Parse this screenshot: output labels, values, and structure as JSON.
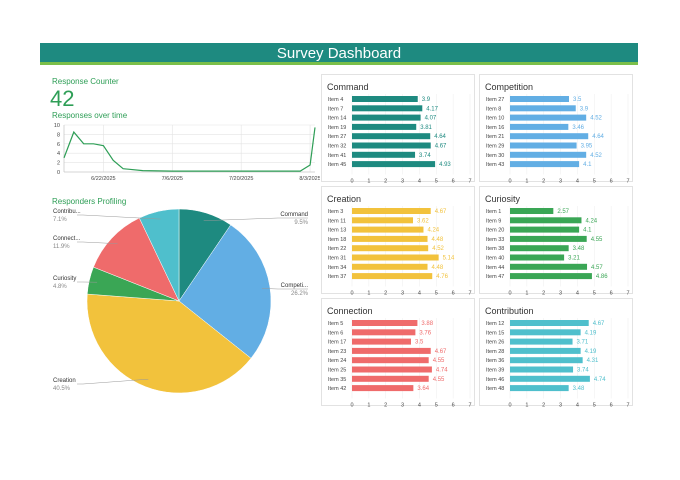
{
  "header": {
    "title": "Survey Dashboard"
  },
  "counter": {
    "label": "Response Counter",
    "value": "42"
  },
  "timeline": {
    "title": "Responses over time",
    "y_ticks": [
      0,
      2,
      4,
      6,
      8,
      10
    ],
    "x_ticks": [
      "6/22/2025",
      "7/6/2025",
      "7/20/2025",
      "8/3/2025"
    ]
  },
  "profiling": {
    "title": "Responders Profiling"
  },
  "chart_data": [
    {
      "type": "line",
      "title": "Responses over time",
      "x": [
        "6/14/2025",
        "6/16/2025",
        "6/18/2025",
        "6/20/2025",
        "6/22/2025",
        "6/24/2025",
        "6/26/2025",
        "6/30/2025",
        "7/6/2025",
        "7/13/2025",
        "7/20/2025",
        "7/27/2025",
        "8/1/2025",
        "8/3/2025",
        "8/4/2025"
      ],
      "values": [
        3,
        8.5,
        6,
        6,
        5.6,
        2.5,
        0.7,
        0.3,
        0.2,
        0.2,
        0.2,
        0.2,
        0.2,
        1.5,
        9.5
      ],
      "ylim": [
        0,
        10
      ],
      "color": "#2e9e56"
    },
    {
      "type": "pie",
      "title": "Responders Profiling",
      "slices": [
        {
          "name": "Command",
          "percent": "9.5%",
          "value": 9.5,
          "color": "#1e8a80"
        },
        {
          "name": "Competi...",
          "percent": "26.2%",
          "value": 26.2,
          "color": "#62aee4"
        },
        {
          "name": "Creation",
          "percent": "40.5%",
          "value": 40.5,
          "color": "#f2c23c"
        },
        {
          "name": "Curiosity",
          "percent": "4.8%",
          "value": 4.8,
          "color": "#3aa655"
        },
        {
          "name": "Connect...",
          "percent": "11.9%",
          "value": 11.9,
          "color": "#ef6b6b"
        },
        {
          "name": "Contribu...",
          "percent": "7.1%",
          "value": 7.1,
          "color": "#4fbfcc"
        }
      ]
    },
    {
      "type": "bar",
      "title": "Command",
      "color": "#1e8a80",
      "xlim": [
        0,
        7
      ],
      "categories": [
        "Item 4",
        "Item 7",
        "Item 14",
        "Item 19",
        "Item 27",
        "Item 32",
        "Item 41",
        "Item 45"
      ],
      "values": [
        3.9,
        4.17,
        4.07,
        3.81,
        4.64,
        4.67,
        3.74,
        4.93
      ],
      "labels": [
        "3.9",
        "4.17",
        "4.07",
        "3.81",
        "4.64",
        "4.67",
        "3.74",
        "4.93"
      ]
    },
    {
      "type": "bar",
      "title": "Competition",
      "color": "#62aee4",
      "xlim": [
        0,
        7
      ],
      "categories": [
        "Item 27",
        "Item 8",
        "Item 10",
        "Item 16",
        "Item 21",
        "Item 29",
        "Item 30",
        "Item 43"
      ],
      "values": [
        3.5,
        3.9,
        4.52,
        3.46,
        4.64,
        3.95,
        4.52,
        4.1
      ],
      "labels": [
        "3.5",
        "3.9",
        "4.52",
        "3.46",
        "4.64",
        "3.95",
        "4.52",
        "4.1"
      ]
    },
    {
      "type": "bar",
      "title": "Creation",
      "color": "#f2c23c",
      "xlim": [
        0,
        7
      ],
      "categories": [
        "Item 3",
        "Item 11",
        "Item 13",
        "Item 18",
        "Item 22",
        "Item 31",
        "Item 34",
        "Item 37"
      ],
      "values": [
        4.67,
        3.62,
        4.24,
        4.48,
        4.52,
        5.14,
        4.48,
        4.76
      ],
      "labels": [
        "4.67",
        "3.62",
        "4.24",
        "4.48",
        "4.52",
        "5.14",
        "4.48",
        "4.76"
      ]
    },
    {
      "type": "bar",
      "title": "Curiosity",
      "color": "#3aa655",
      "xlim": [
        0,
        7
      ],
      "categories": [
        "Item 1",
        "Item 9",
        "Item 20",
        "Item 33",
        "Item 38",
        "Item 40",
        "Item 44",
        "Item 47"
      ],
      "values": [
        2.57,
        4.24,
        4.1,
        4.55,
        3.48,
        3.21,
        4.57,
        4.86
      ],
      "labels": [
        "2.57",
        "4.24",
        "4.1",
        "4.55",
        "3.48",
        "3.21",
        "4.57",
        "4.86"
      ]
    },
    {
      "type": "bar",
      "title": "Connection",
      "color": "#ef6b6b",
      "xlim": [
        0,
        7
      ],
      "categories": [
        "Item 5",
        "Item 6",
        "Item 17",
        "Item 23",
        "Item 24",
        "Item 25",
        "Item 35",
        "Item 42"
      ],
      "values": [
        3.88,
        3.76,
        3.5,
        4.67,
        4.55,
        4.74,
        4.55,
        3.64
      ],
      "labels": [
        "3.88",
        "3.76",
        "3.5",
        "4.67",
        "4.55",
        "4.74",
        "4.55",
        "3.64"
      ]
    },
    {
      "type": "bar",
      "title": "Contribution",
      "color": "#4fbfcc",
      "xlim": [
        0,
        7
      ],
      "categories": [
        "Item 12",
        "Item 15",
        "Item 26",
        "Item 28",
        "Item 36",
        "Item 39",
        "Item 46",
        "Item 48"
      ],
      "values": [
        4.67,
        4.19,
        3.71,
        4.19,
        4.31,
        3.74,
        4.74,
        3.48
      ],
      "labels": [
        "4.67",
        "4.19",
        "3.71",
        "4.19",
        "4.31",
        "3.74",
        "4.74",
        "3.48"
      ]
    }
  ]
}
